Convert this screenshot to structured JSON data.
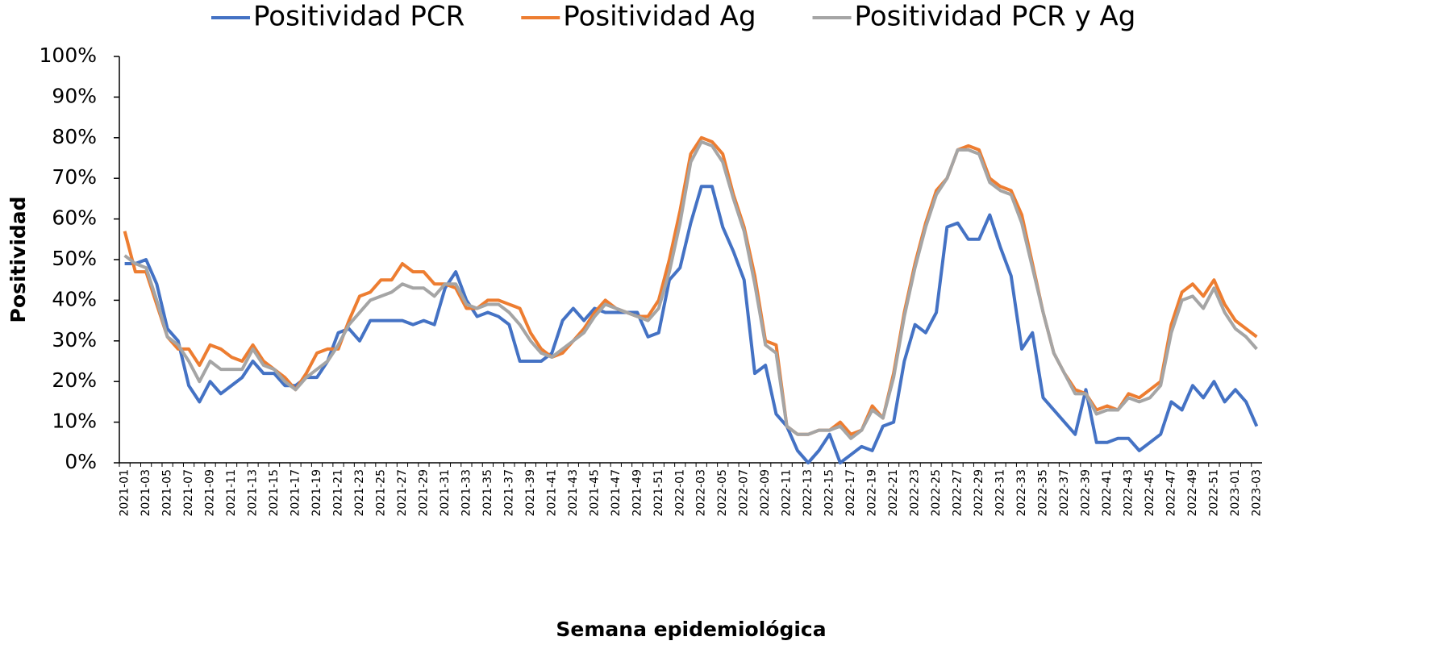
{
  "chart_data": {
    "type": "line",
    "x_label": "Semana epidemiológica",
    "y_label": "Positividad",
    "categories": [
      "2021-01",
      null,
      "2021-03",
      null,
      "2021-05",
      null,
      "2021-07",
      null,
      "2021-09",
      null,
      "2021-11",
      null,
      "2021-13",
      null,
      "2021-15",
      null,
      "2021-17",
      null,
      "2021-19",
      null,
      "2021-21",
      null,
      "2021-23",
      null,
      "2021-25",
      null,
      "2021-27",
      null,
      "2021-29",
      null,
      "2021-31",
      null,
      "2021-33",
      null,
      "2021-35",
      null,
      "2021-37",
      null,
      "2021-39",
      null,
      "2021-41",
      null,
      "2021-43",
      null,
      "2021-45",
      null,
      "2021-47",
      null,
      "2021-49",
      null,
      "2021-51",
      null,
      "2022-01",
      null,
      "2022-03",
      null,
      "2022-05",
      null,
      "2022-07",
      null,
      "2022-09",
      null,
      "2022-11",
      null,
      "2022-13",
      null,
      "2022-15",
      null,
      "2022-17",
      null,
      "2022-19",
      null,
      "2022-21",
      null,
      "2022-23",
      null,
      "2022-25",
      null,
      "2022-27",
      null,
      "2022-29",
      null,
      "2022-31",
      null,
      "2022-33",
      null,
      "2022-35",
      null,
      "2022-37",
      null,
      "2022-39",
      null,
      "2022-41",
      null,
      "2022-43",
      null,
      "2022-45",
      null,
      "2022-47",
      null,
      "2022-49",
      null,
      "2022-51",
      null,
      "2023-01",
      null,
      "2023-03"
    ],
    "series": [
      {
        "name": "Positividad PCR",
        "color": "#4472c4",
        "values": [
          49,
          49,
          50,
          44,
          33,
          30,
          19,
          15,
          20,
          17,
          19,
          21,
          25,
          22,
          22,
          19,
          19,
          21,
          21,
          25,
          32,
          33,
          30,
          35,
          35,
          35,
          35,
          34,
          35,
          34,
          43,
          47,
          40,
          36,
          37,
          36,
          34,
          25,
          25,
          25,
          27,
          35,
          38,
          35,
          38,
          37,
          37,
          37,
          37,
          31,
          32,
          45,
          48,
          59,
          68,
          68,
          58,
          52,
          45,
          22,
          24,
          12,
          9,
          3,
          0,
          3,
          7,
          0,
          2,
          4,
          3,
          9,
          10,
          25,
          34,
          32,
          37,
          58,
          59,
          55,
          55,
          61,
          53,
          46,
          28,
          32,
          16,
          13,
          10,
          7,
          18,
          5,
          5,
          6,
          6,
          3,
          5,
          7,
          15,
          13,
          19,
          16,
          20,
          15,
          18,
          15,
          9
        ]
      },
      {
        "name": "Positividad Ag",
        "color": "#ed7d31",
        "values": [
          57,
          47,
          47,
          39,
          31,
          28,
          28,
          24,
          29,
          28,
          26,
          25,
          29,
          25,
          23,
          21,
          18,
          22,
          27,
          28,
          28,
          35,
          41,
          42,
          45,
          45,
          49,
          47,
          47,
          44,
          44,
          43,
          38,
          38,
          40,
          40,
          39,
          38,
          32,
          28,
          26,
          27,
          30,
          33,
          37,
          40,
          38,
          37,
          36,
          36,
          40,
          50,
          62,
          76,
          80,
          79,
          76,
          66,
          58,
          46,
          30,
          29,
          9,
          7,
          7,
          8,
          8,
          10,
          7,
          8,
          14,
          11,
          22,
          37,
          49,
          59,
          67,
          70,
          77,
          78,
          77,
          70,
          68,
          67,
          61,
          49,
          37,
          27,
          22,
          18,
          17,
          13,
          14,
          13,
          17,
          16,
          18,
          20,
          34,
          42,
          44,
          41,
          45,
          39,
          35,
          33,
          31
        ]
      },
      {
        "name": "Positividad PCR y Ag",
        "color": "#a5a5a5",
        "values": [
          51,
          49,
          48,
          40,
          31,
          29,
          25,
          20,
          25,
          23,
          23,
          23,
          28,
          24,
          23,
          20,
          18,
          21,
          23,
          25,
          29,
          34,
          37,
          40,
          41,
          42,
          44,
          43,
          43,
          41,
          44,
          44,
          39,
          38,
          39,
          39,
          37,
          34,
          30,
          27,
          26,
          28,
          30,
          32,
          36,
          39,
          38,
          37,
          36,
          35,
          38,
          47,
          59,
          74,
          79,
          78,
          74,
          65,
          57,
          44,
          29,
          27,
          9,
          7,
          7,
          8,
          8,
          9,
          6,
          8,
          13,
          11,
          21,
          36,
          48,
          58,
          66,
          70,
          77,
          77,
          76,
          69,
          67,
          66,
          59,
          48,
          37,
          27,
          22,
          17,
          17,
          12,
          13,
          13,
          16,
          15,
          16,
          19,
          32,
          40,
          41,
          38,
          43,
          37,
          33,
          31,
          28
        ]
      }
    ],
    "ylim": [
      0,
      100
    ],
    "yticks": [
      {
        "value": 0,
        "label": "0%"
      },
      {
        "value": 10,
        "label": "10%"
      },
      {
        "value": 20,
        "label": "20%"
      },
      {
        "value": 30,
        "label": "30%"
      },
      {
        "value": 40,
        "label": "40%"
      },
      {
        "value": 50,
        "label": "50%"
      },
      {
        "value": 60,
        "label": "60%"
      },
      {
        "value": 70,
        "label": "70%"
      },
      {
        "value": 80,
        "label": "80%"
      },
      {
        "value": 90,
        "label": "90%"
      },
      {
        "value": 100,
        "label": "100%"
      }
    ],
    "grid": false,
    "legend": "top"
  }
}
